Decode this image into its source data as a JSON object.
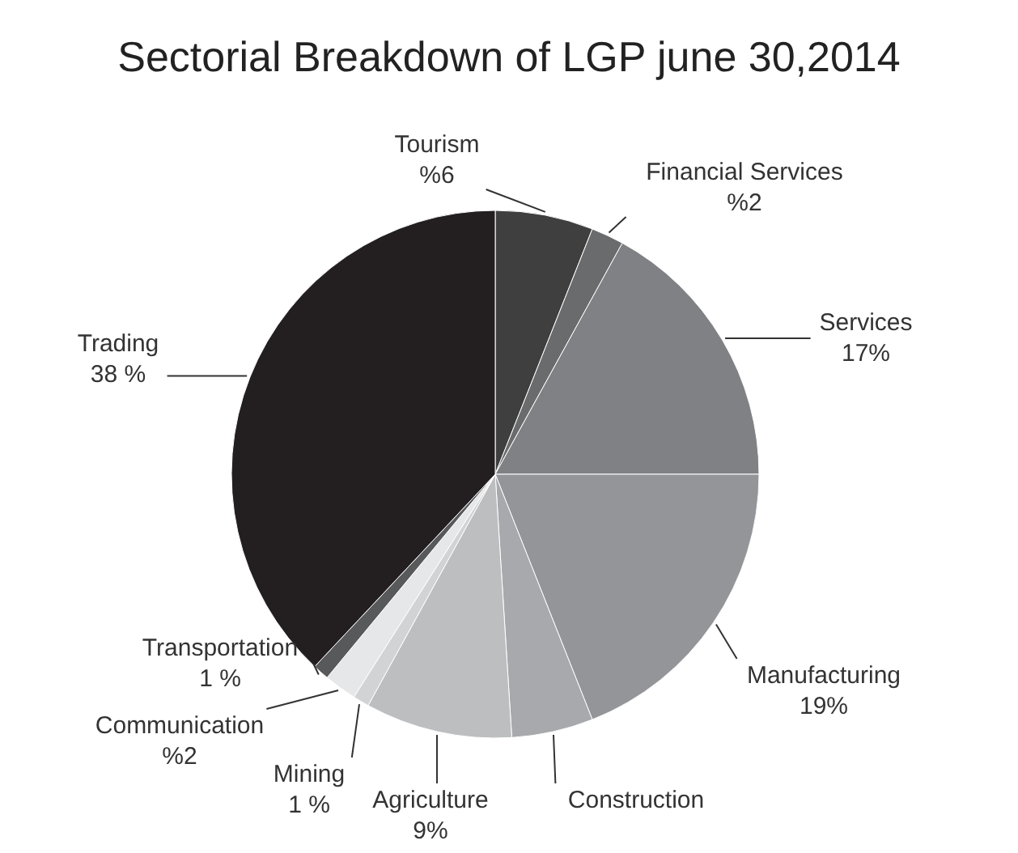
{
  "chart_data": {
    "type": "pie",
    "title": "Sectorial Breakdown of LGP june 30,2014",
    "categories": [
      "Tourism",
      "Financial Services",
      "Services",
      "Manufacturing",
      "Construction",
      "Agriculture",
      "Mining",
      "Communication",
      "Transportation",
      "Trading"
    ],
    "values": [
      6,
      2,
      17,
      19,
      5,
      9,
      1,
      2,
      1,
      38
    ],
    "value_labels": [
      "%6",
      "%2",
      "17%",
      "19%",
      null,
      "9%",
      "1 %",
      "%2",
      "1 %",
      "38 %"
    ],
    "colors": [
      "#3f3f3f",
      "#6a6b6d",
      "#808184",
      "#939598",
      "#a7a9ac",
      "#bcbec0",
      "#d1d3d4",
      "#e6e7e8",
      "#58595b",
      "#231f20"
    ]
  }
}
